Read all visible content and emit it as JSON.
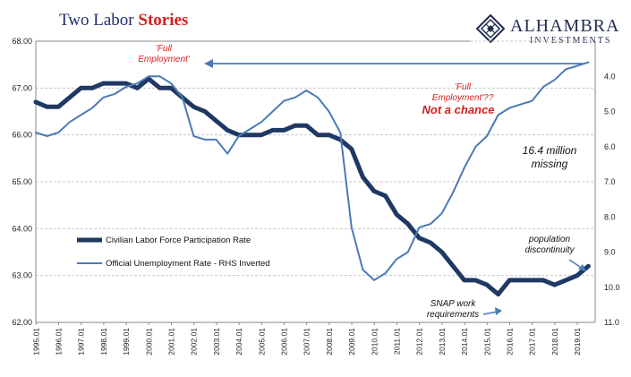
{
  "title_prefix": "Two Labor ",
  "title_accent": "Stories",
  "logo": {
    "name": "ALHAMBRA",
    "sub": "INVESTMENTS",
    "mark": "diamond-lattice-logo",
    "color": "#1f2d4f"
  },
  "chart_data": {
    "type": "line",
    "x_tick_labels": [
      "1995.01",
      "1996.01",
      "1997.01",
      "1998.01",
      "1999.01",
      "2000.01",
      "2001.01",
      "2002.01",
      "2003.01",
      "2004.01",
      "2005.01",
      "2006.01",
      "2007.01",
      "2008.01",
      "2009.01",
      "2010.01",
      "2011.01",
      "2012.01",
      "2013.01",
      "2014.01",
      "2015.01",
      "2016.01",
      "2017.01",
      "2018.01",
      "2019.01"
    ],
    "y_left": {
      "ticks": [
        "62.00",
        "63.00",
        "64.00",
        "65.00",
        "66.00",
        "67.00",
        "68.00"
      ],
      "lim": [
        62,
        68
      ]
    },
    "y_right": {
      "ticks": [
        "4.0",
        "5.0",
        "6.0",
        "7.0",
        "8.0",
        "9.0",
        "10.0",
        "11.0"
      ],
      "lim": [
        3.0,
        11.0
      ],
      "inverted": true
    },
    "grid": true,
    "series": [
      {
        "name": "Civilian Labor Force Participation Rate",
        "axis": "left",
        "color": "#1f3864",
        "x": [
          1995.0,
          1995.5,
          1996.0,
          1996.5,
          1997.0,
          1997.5,
          1998.0,
          1998.5,
          1999.0,
          1999.5,
          2000.0,
          2000.5,
          2001.0,
          2001.5,
          2002.0,
          2002.5,
          2003.0,
          2003.5,
          2004.0,
          2004.5,
          2005.0,
          2005.5,
          2006.0,
          2006.5,
          2007.0,
          2007.5,
          2008.0,
          2008.5,
          2009.0,
          2009.5,
          2010.0,
          2010.5,
          2011.0,
          2011.5,
          2012.0,
          2012.5,
          2013.0,
          2013.5,
          2014.0,
          2014.5,
          2015.0,
          2015.5,
          2016.0,
          2016.5,
          2017.0,
          2017.5,
          2018.0,
          2018.5,
          2019.0,
          2019.5
        ],
        "values": [
          66.7,
          66.6,
          66.6,
          66.8,
          67.0,
          67.0,
          67.1,
          67.1,
          67.1,
          67.0,
          67.2,
          67.0,
          67.0,
          66.8,
          66.6,
          66.5,
          66.3,
          66.1,
          66.0,
          66.0,
          66.0,
          66.1,
          66.1,
          66.2,
          66.2,
          66.0,
          66.0,
          65.9,
          65.7,
          65.1,
          64.8,
          64.7,
          64.3,
          64.1,
          63.8,
          63.7,
          63.5,
          63.2,
          62.9,
          62.9,
          62.8,
          62.6,
          62.9,
          62.9,
          62.9,
          62.9,
          62.8,
          62.9,
          63.0,
          63.2
        ]
      },
      {
        "name": "Official Unemployment Rate - RHS Inverted",
        "axis": "right",
        "color": "#4a7ab5",
        "x": [
          1995.0,
          1995.5,
          1996.0,
          1996.5,
          1997.0,
          1997.5,
          1998.0,
          1998.5,
          1999.0,
          1999.5,
          2000.0,
          2000.5,
          2001.0,
          2001.5,
          2002.0,
          2002.5,
          2003.0,
          2003.5,
          2004.0,
          2004.5,
          2005.0,
          2005.5,
          2006.0,
          2006.5,
          2007.0,
          2007.5,
          2008.0,
          2008.5,
          2009.0,
          2009.5,
          2010.0,
          2010.5,
          2011.0,
          2011.5,
          2012.0,
          2012.5,
          2013.0,
          2013.5,
          2014.0,
          2014.5,
          2015.0,
          2015.5,
          2016.0,
          2016.5,
          2017.0,
          2017.5,
          2018.0,
          2018.5,
          2019.0,
          2019.5
        ],
        "values": [
          5.6,
          5.7,
          5.6,
          5.3,
          5.1,
          4.9,
          4.6,
          4.5,
          4.3,
          4.2,
          4.0,
          4.0,
          4.2,
          4.6,
          5.7,
          5.8,
          5.8,
          6.2,
          5.7,
          5.5,
          5.3,
          5.0,
          4.7,
          4.6,
          4.4,
          4.6,
          5.0,
          5.6,
          8.3,
          9.5,
          9.8,
          9.6,
          9.2,
          9.0,
          8.3,
          8.2,
          7.9,
          7.3,
          6.6,
          6.0,
          5.7,
          5.1,
          4.9,
          4.8,
          4.7,
          4.3,
          4.1,
          3.8,
          3.7,
          3.6
        ]
      }
    ],
    "legend": {
      "placement": "lower-left"
    },
    "annotations": [
      {
        "text": "'Full\nEmployment'",
        "color": "#d21f1f"
      },
      {
        "text": "'Full\nEmployment'??",
        "color": "#d21f1f"
      },
      {
        "text": "Not a chance",
        "color": "#d21f1f"
      },
      {
        "text": "16.4 million\nmissing",
        "color": "#111111"
      },
      {
        "text": "population\ndiscontinuity",
        "color": "#111111"
      },
      {
        "text": "SNAP work\nrequirements",
        "color": "#111111"
      }
    ]
  }
}
